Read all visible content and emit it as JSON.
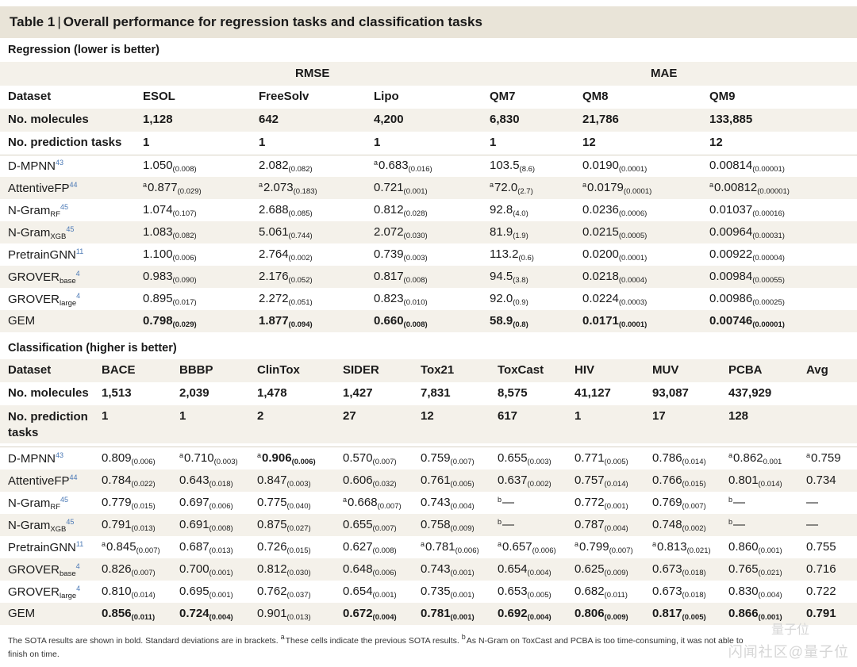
{
  "caption": {
    "label": "Table 1",
    "pipe": "|",
    "title": "Overall performance for regression tasks and classification tasks"
  },
  "regression": {
    "section_title": "Regression (lower is better)",
    "group_rmse": "RMSE",
    "group_mae": "MAE",
    "header": {
      "label": "Dataset",
      "cols": [
        "ESOL",
        "FreeSolv",
        "Lipo",
        "QM7",
        "QM8",
        "QM9"
      ]
    },
    "molecules": {
      "label": "No. molecules",
      "cols": [
        "1,128",
        "642",
        "4,200",
        "6,830",
        "21,786",
        "133,885"
      ]
    },
    "tasks": {
      "label": "No. prediction tasks",
      "cols": [
        "1",
        "1",
        "1",
        "1",
        "12",
        "12"
      ]
    },
    "rows": [
      {
        "name": "D-MPNN",
        "sub": "",
        "ref": "43",
        "cells": [
          {
            "m": "",
            "v": "1.050",
            "sd": "(0.008)",
            "b": false
          },
          {
            "m": "",
            "v": "2.082",
            "sd": "(0.082)",
            "b": false
          },
          {
            "m": "a",
            "v": "0.683",
            "sd": "(0.016)",
            "b": false
          },
          {
            "m": "",
            "v": "103.5",
            "sd": "(8.6)",
            "b": false
          },
          {
            "m": "",
            "v": "0.0190",
            "sd": "(0.0001)",
            "b": false
          },
          {
            "m": "",
            "v": "0.00814",
            "sd": "(0.00001)",
            "b": false
          }
        ]
      },
      {
        "name": "AttentiveFP",
        "sub": "",
        "ref": "44",
        "cells": [
          {
            "m": "a",
            "v": "0.877",
            "sd": "(0.029)",
            "b": false
          },
          {
            "m": "a",
            "v": "2.073",
            "sd": "(0.183)",
            "b": false
          },
          {
            "m": "",
            "v": "0.721",
            "sd": "(0.001)",
            "b": false
          },
          {
            "m": "a",
            "v": "72.0",
            "sd": "(2.7)",
            "b": false
          },
          {
            "m": "a",
            "v": "0.0179",
            "sd": "(0.0001)",
            "b": false
          },
          {
            "m": "a",
            "v": "0.00812",
            "sd": "(0.00001)",
            "b": false
          }
        ]
      },
      {
        "name": "N-Gram",
        "sub": "RF",
        "ref": "45",
        "cells": [
          {
            "m": "",
            "v": "1.074",
            "sd": "(0.107)",
            "b": false
          },
          {
            "m": "",
            "v": "2.688",
            "sd": "(0.085)",
            "b": false
          },
          {
            "m": "",
            "v": "0.812",
            "sd": "(0.028)",
            "b": false
          },
          {
            "m": "",
            "v": "92.8",
            "sd": "(4.0)",
            "b": false
          },
          {
            "m": "",
            "v": "0.0236",
            "sd": "(0.0006)",
            "b": false
          },
          {
            "m": "",
            "v": "0.01037",
            "sd": "(0.00016)",
            "b": false
          }
        ]
      },
      {
        "name": "N-Gram",
        "sub": "XGB",
        "ref": "45",
        "cells": [
          {
            "m": "",
            "v": "1.083",
            "sd": "(0.082)",
            "b": false
          },
          {
            "m": "",
            "v": "5.061",
            "sd": "(0.744)",
            "b": false
          },
          {
            "m": "",
            "v": "2.072",
            "sd": "(0.030)",
            "b": false
          },
          {
            "m": "",
            "v": "81.9",
            "sd": "(1.9)",
            "b": false
          },
          {
            "m": "",
            "v": "0.0215",
            "sd": "(0.0005)",
            "b": false
          },
          {
            "m": "",
            "v": "0.00964",
            "sd": "(0.00031)",
            "b": false
          }
        ]
      },
      {
        "name": "PretrainGNN",
        "sub": "",
        "ref": "11",
        "cells": [
          {
            "m": "",
            "v": "1.100",
            "sd": "(0.006)",
            "b": false
          },
          {
            "m": "",
            "v": "2.764",
            "sd": "(0.002)",
            "b": false
          },
          {
            "m": "",
            "v": "0.739",
            "sd": "(0.003)",
            "b": false
          },
          {
            "m": "",
            "v": "113.2",
            "sd": "(0.6)",
            "b": false
          },
          {
            "m": "",
            "v": "0.0200",
            "sd": "(0.0001)",
            "b": false
          },
          {
            "m": "",
            "v": "0.00922",
            "sd": "(0.00004)",
            "b": false
          }
        ]
      },
      {
        "name": "GROVER",
        "sub": "base",
        "ref": "4",
        "cells": [
          {
            "m": "",
            "v": "0.983",
            "sd": "(0.090)",
            "b": false
          },
          {
            "m": "",
            "v": "2.176",
            "sd": "(0.052)",
            "b": false
          },
          {
            "m": "",
            "v": "0.817",
            "sd": "(0.008)",
            "b": false
          },
          {
            "m": "",
            "v": "94.5",
            "sd": "(3.8)",
            "b": false
          },
          {
            "m": "",
            "v": "0.0218",
            "sd": "(0.0004)",
            "b": false
          },
          {
            "m": "",
            "v": "0.00984",
            "sd": "(0.00055)",
            "b": false
          }
        ]
      },
      {
        "name": "GROVER",
        "sub": "large",
        "ref": "4",
        "cells": [
          {
            "m": "",
            "v": "0.895",
            "sd": "(0.017)",
            "b": false
          },
          {
            "m": "",
            "v": "2.272",
            "sd": "(0.051)",
            "b": false
          },
          {
            "m": "",
            "v": "0.823",
            "sd": "(0.010)",
            "b": false
          },
          {
            "m": "",
            "v": "92.0",
            "sd": "(0.9)",
            "b": false
          },
          {
            "m": "",
            "v": "0.0224",
            "sd": "(0.0003)",
            "b": false
          },
          {
            "m": "",
            "v": "0.00986",
            "sd": "(0.00025)",
            "b": false
          }
        ]
      },
      {
        "name": "GEM",
        "sub": "",
        "ref": "",
        "cells": [
          {
            "m": "",
            "v": "0.798",
            "sd": "(0.029)",
            "b": true
          },
          {
            "m": "",
            "v": "1.877",
            "sd": "(0.094)",
            "b": true
          },
          {
            "m": "",
            "v": "0.660",
            "sd": "(0.008)",
            "b": true
          },
          {
            "m": "",
            "v": "58.9",
            "sd": "(0.8)",
            "b": true
          },
          {
            "m": "",
            "v": "0.0171",
            "sd": "(0.0001)",
            "b": true
          },
          {
            "m": "",
            "v": "0.00746",
            "sd": "(0.00001)",
            "b": true
          }
        ]
      }
    ]
  },
  "classification": {
    "section_title": "Classification (higher is better)",
    "header": {
      "label": "Dataset",
      "cols": [
        "BACE",
        "BBBP",
        "ClinTox",
        "SIDER",
        "Tox21",
        "ToxCast",
        "HIV",
        "MUV",
        "PCBA",
        "Avg"
      ]
    },
    "molecules": {
      "label": "No. molecules",
      "cols": [
        "1,513",
        "2,039",
        "1,478",
        "1,427",
        "7,831",
        "8,575",
        "41,127",
        "93,087",
        "437,929",
        ""
      ]
    },
    "tasks": {
      "label_line1": "No. prediction",
      "label_line2": "tasks",
      "cols": [
        "1",
        "1",
        "2",
        "27",
        "12",
        "617",
        "1",
        "17",
        "128",
        ""
      ]
    },
    "rows": [
      {
        "name": "D-MPNN",
        "sub": "",
        "ref": "43",
        "cells": [
          {
            "m": "",
            "v": "0.809",
            "sd": "(0.006)",
            "b": false
          },
          {
            "m": "a",
            "v": "0.710",
            "sd": "(0.003)",
            "b": false
          },
          {
            "m": "a",
            "v": "0.906",
            "sd": "(0.006)",
            "b": true
          },
          {
            "m": "",
            "v": "0.570",
            "sd": "(0.007)",
            "b": false
          },
          {
            "m": "",
            "v": "0.759",
            "sd": "(0.007)",
            "b": false
          },
          {
            "m": "",
            "v": "0.655",
            "sd": "(0.003)",
            "b": false
          },
          {
            "m": "",
            "v": "0.771",
            "sd": "(0.005)",
            "b": false
          },
          {
            "m": "",
            "v": "0.786",
            "sd": "(0.014)",
            "b": false
          },
          {
            "m": "a",
            "v": "0.862",
            "sd": "0.001",
            "b": false
          },
          {
            "m": "a",
            "v": "0.759",
            "sd": "",
            "b": false
          }
        ]
      },
      {
        "name": "AttentiveFP",
        "sub": "",
        "ref": "44",
        "cells": [
          {
            "m": "",
            "v": "0.784",
            "sd": "(0.022)",
            "b": false
          },
          {
            "m": "",
            "v": "0.643",
            "sd": "(0.018)",
            "b": false
          },
          {
            "m": "",
            "v": "0.847",
            "sd": "(0.003)",
            "b": false
          },
          {
            "m": "",
            "v": "0.606",
            "sd": "(0.032)",
            "b": false
          },
          {
            "m": "",
            "v": "0.761",
            "sd": "(0.005)",
            "b": false
          },
          {
            "m": "",
            "v": "0.637",
            "sd": "(0.002)",
            "b": false
          },
          {
            "m": "",
            "v": "0.757",
            "sd": "(0.014)",
            "b": false
          },
          {
            "m": "",
            "v": "0.766",
            "sd": "(0.015)",
            "b": false
          },
          {
            "m": "",
            "v": "0.801",
            "sd": "(0.014)",
            "b": false
          },
          {
            "m": "",
            "v": "0.734",
            "sd": "",
            "b": false
          }
        ]
      },
      {
        "name": "N-Gram",
        "sub": "RF",
        "ref": "45",
        "cells": [
          {
            "m": "",
            "v": "0.779",
            "sd": "(0.015)",
            "b": false
          },
          {
            "m": "",
            "v": "0.697",
            "sd": "(0.006)",
            "b": false
          },
          {
            "m": "",
            "v": "0.775",
            "sd": "(0.040)",
            "b": false
          },
          {
            "m": "a",
            "v": "0.668",
            "sd": "(0.007)",
            "b": false
          },
          {
            "m": "",
            "v": "0.743",
            "sd": "(0.004)",
            "b": false
          },
          {
            "m": "b",
            "v": "—",
            "sd": "",
            "b": false
          },
          {
            "m": "",
            "v": "0.772",
            "sd": "(0.001)",
            "b": false
          },
          {
            "m": "",
            "v": "0.769",
            "sd": "(0.007)",
            "b": false
          },
          {
            "m": "b",
            "v": "—",
            "sd": "",
            "b": false
          },
          {
            "m": "",
            "v": "—",
            "sd": "",
            "b": false
          }
        ]
      },
      {
        "name": "N-Gram",
        "sub": "XGB",
        "ref": "45",
        "cells": [
          {
            "m": "",
            "v": "0.791",
            "sd": "(0.013)",
            "b": false
          },
          {
            "m": "",
            "v": "0.691",
            "sd": "(0.008)",
            "b": false
          },
          {
            "m": "",
            "v": "0.875",
            "sd": "(0.027)",
            "b": false
          },
          {
            "m": "",
            "v": "0.655",
            "sd": "(0.007)",
            "b": false
          },
          {
            "m": "",
            "v": "0.758",
            "sd": "(0.009)",
            "b": false
          },
          {
            "m": "b",
            "v": "—",
            "sd": "",
            "b": false
          },
          {
            "m": "",
            "v": "0.787",
            "sd": "(0.004)",
            "b": false
          },
          {
            "m": "",
            "v": "0.748",
            "sd": "(0.002)",
            "b": false
          },
          {
            "m": "b",
            "v": "—",
            "sd": "",
            "b": false
          },
          {
            "m": "",
            "v": "—",
            "sd": "",
            "b": false
          }
        ]
      },
      {
        "name": "PretrainGNN",
        "sub": "",
        "ref": "11",
        "cells": [
          {
            "m": "a",
            "v": "0.845",
            "sd": "(0.007)",
            "b": false
          },
          {
            "m": "",
            "v": "0.687",
            "sd": "(0.013)",
            "b": false
          },
          {
            "m": "",
            "v": "0.726",
            "sd": "(0.015)",
            "b": false
          },
          {
            "m": "",
            "v": "0.627",
            "sd": "(0.008)",
            "b": false
          },
          {
            "m": "a",
            "v": "0.781",
            "sd": "(0.006)",
            "b": false
          },
          {
            "m": "a",
            "v": "0.657",
            "sd": "(0.006)",
            "b": false
          },
          {
            "m": "a",
            "v": "0.799",
            "sd": "(0.007)",
            "b": false
          },
          {
            "m": "a",
            "v": "0.813",
            "sd": "(0.021)",
            "b": false
          },
          {
            "m": "",
            "v": "0.860",
            "sd": "(0.001)",
            "b": false
          },
          {
            "m": "",
            "v": "0.755",
            "sd": "",
            "b": false
          }
        ]
      },
      {
        "name": "GROVER",
        "sub": "base",
        "ref": "4",
        "cells": [
          {
            "m": "",
            "v": "0.826",
            "sd": "(0.007)",
            "b": false
          },
          {
            "m": "",
            "v": "0.700",
            "sd": "(0.001)",
            "b": false
          },
          {
            "m": "",
            "v": "0.812",
            "sd": "(0.030)",
            "b": false
          },
          {
            "m": "",
            "v": "0.648",
            "sd": "(0.006)",
            "b": false
          },
          {
            "m": "",
            "v": "0.743",
            "sd": "(0.001)",
            "b": false
          },
          {
            "m": "",
            "v": "0.654",
            "sd": "(0.004)",
            "b": false
          },
          {
            "m": "",
            "v": "0.625",
            "sd": "(0.009)",
            "b": false
          },
          {
            "m": "",
            "v": "0.673",
            "sd": "(0.018)",
            "b": false
          },
          {
            "m": "",
            "v": "0.765",
            "sd": "(0.021)",
            "b": false
          },
          {
            "m": "",
            "v": "0.716",
            "sd": "",
            "b": false
          }
        ]
      },
      {
        "name": "GROVER",
        "sub": "large",
        "ref": "4",
        "cells": [
          {
            "m": "",
            "v": "0.810",
            "sd": "(0.014)",
            "b": false
          },
          {
            "m": "",
            "v": "0.695",
            "sd": "(0.001)",
            "b": false
          },
          {
            "m": "",
            "v": "0.762",
            "sd": "(0.037)",
            "b": false
          },
          {
            "m": "",
            "v": "0.654",
            "sd": "(0.001)",
            "b": false
          },
          {
            "m": "",
            "v": "0.735",
            "sd": "(0.001)",
            "b": false
          },
          {
            "m": "",
            "v": "0.653",
            "sd": "(0.005)",
            "b": false
          },
          {
            "m": "",
            "v": "0.682",
            "sd": "(0.011)",
            "b": false
          },
          {
            "m": "",
            "v": "0.673",
            "sd": "(0.018)",
            "b": false
          },
          {
            "m": "",
            "v": "0.830",
            "sd": "(0.004)",
            "b": false
          },
          {
            "m": "",
            "v": "0.722",
            "sd": "",
            "b": false
          }
        ]
      },
      {
        "name": "GEM",
        "sub": "",
        "ref": "",
        "cells": [
          {
            "m": "",
            "v": "0.856",
            "sd": "(0.011)",
            "b": true
          },
          {
            "m": "",
            "v": "0.724",
            "sd": "(0.004)",
            "b": true
          },
          {
            "m": "",
            "v": "0.901",
            "sd": "(0.013)",
            "b": false
          },
          {
            "m": "",
            "v": "0.672",
            "sd": "(0.004)",
            "b": true
          },
          {
            "m": "",
            "v": "0.781",
            "sd": "(0.001)",
            "b": true
          },
          {
            "m": "",
            "v": "0.692",
            "sd": "(0.004)",
            "b": true
          },
          {
            "m": "",
            "v": "0.806",
            "sd": "(0.009)",
            "b": true
          },
          {
            "m": "",
            "v": "0.817",
            "sd": "(0.005)",
            "b": true
          },
          {
            "m": "",
            "v": "0.866",
            "sd": "(0.001)",
            "b": true
          },
          {
            "m": "",
            "v": "0.791",
            "sd": "",
            "b": true
          }
        ]
      }
    ]
  },
  "footnote": {
    "line1_a": "The SOTA results are shown in bold. Standard deviations are in brackets.",
    "mark_a": "a",
    "line1_b": "These cells indicate the previous SOTA results.",
    "mark_b": "b",
    "line1_c": "As N-Gram on ToxCast and PCBA is too time-consuming, it was not able to",
    "line2": "finish on time."
  },
  "watermark": {
    "top": "量子位",
    "bottom": "闪闻社区@量子位"
  }
}
